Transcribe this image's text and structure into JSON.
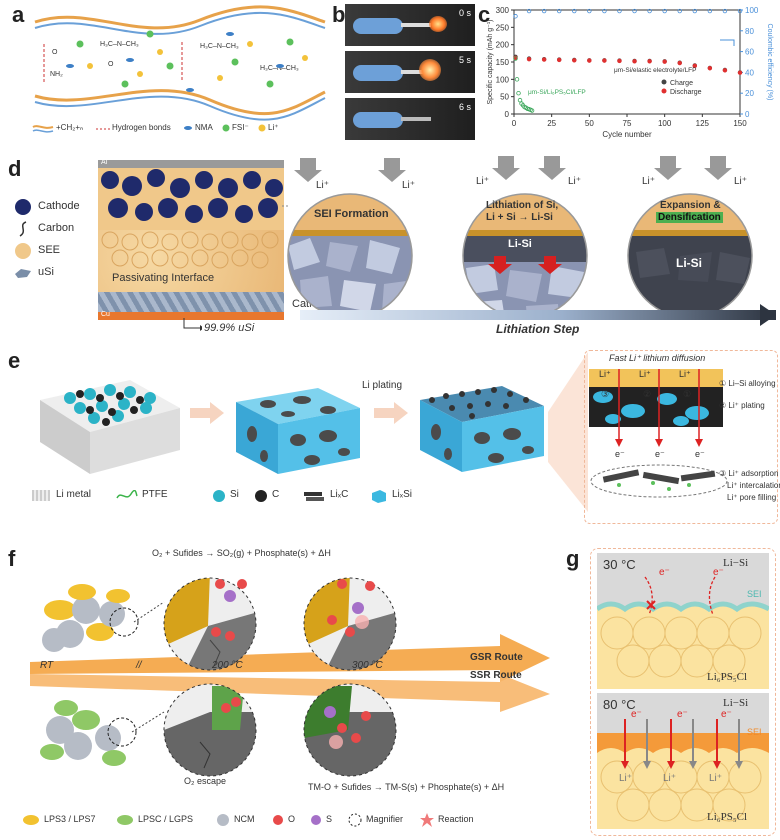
{
  "panels": {
    "a": {
      "letter": "a",
      "legend": {
        "polymer": "+CH₂+ₙ",
        "hbond": "Hydrogen bonds",
        "nma": "NMA",
        "fsi": "FSI⁻",
        "li": "Li⁺"
      }
    },
    "b": {
      "letter": "b",
      "times": [
        "0 s",
        "5 s",
        "6 s"
      ]
    },
    "c": {
      "letter": "c"
    },
    "d": {
      "letter": "d",
      "legend": [
        "Cathode",
        "Carbon",
        "SEE",
        "uSi"
      ],
      "cell_labels": {
        "top": "Al",
        "bottom": "Cu",
        "interface": "Passivating Interface",
        "cathode": "Cathode",
        "usi": "99.9% uSi"
      },
      "li_plus": "Li⁺",
      "circle1": "SEI Formation",
      "circle2_l1": "Lithiation of Si,",
      "circle2_l2": "Li + Si → Li-Si",
      "circle2_alloy": "Li-Si",
      "circle3_l1": "Expansion &",
      "circle3_l2": "Densification",
      "circle3_alloy": "Li-Si",
      "step": "Lithiation Step"
    },
    "e": {
      "letter": "e",
      "plating": "Li plating",
      "title": "Fast Li⁺ lithium diffusion",
      "li_plus": "Li⁺",
      "electron": "e⁻",
      "steps": [
        "① Li–Si alloying",
        "② Li⁺ plating",
        "③ Li⁺ adsorption",
        "Li⁺ intercalation",
        "Li⁺ pore filling"
      ],
      "step_nums": [
        "③",
        "②",
        "①"
      ],
      "legend": [
        "Li metal",
        "PTFE",
        "Si",
        "C",
        "LiₓC",
        "LiₓSi"
      ]
    },
    "f": {
      "letter": "f",
      "eq_top": "O₂ + Sufides → SO₂(g) + Phosphate(s) + ΔH",
      "eq_bottom": "TM-O + Sufides → TM-S(s) + Phosphate(s) + ΔH",
      "rt": "RT",
      "t200": "200 °C",
      "t300": "300 °C",
      "gsr": "GSR Route",
      "ssr": "SSR Route",
      "o2_escape": "O₂ escape",
      "legend": [
        "LPS3 / LPS7",
        "LPSC / LGPS",
        "NCM",
        "O",
        "S",
        "Magnifier",
        "Reaction"
      ]
    },
    "g": {
      "letter": "g",
      "top_temp": "30 °C",
      "top_alloy": "Li−Si",
      "top_sei": "SEI",
      "top_sse": "Li₆PS₅Cl",
      "bot_temp": "80 °C",
      "bot_alloy": "Li−Si",
      "bot_sei": "SEI",
      "bot_sse": "Li₆PS₅Cl",
      "electron": "e⁻",
      "li_plus": "Li⁺"
    }
  },
  "chart_data": {
    "type": "scatter",
    "xlabel": "Cycle number",
    "ylabel": "Specific capacity (mAh g⁻¹)",
    "y2label": "Coulombic efficiency (%)",
    "xlim": [
      0,
      150
    ],
    "ylim": [
      0,
      300
    ],
    "y2lim": [
      0,
      100
    ],
    "xticks": [
      0,
      25,
      50,
      75,
      100,
      125,
      150
    ],
    "yticks": [
      0,
      50,
      100,
      150,
      200,
      250,
      300
    ],
    "y2ticks": [
      0,
      20,
      40,
      60,
      80,
      100
    ],
    "annotations": [
      "μm-Si/elastic electrolyte/LFP",
      "μm-Si/Li₆PS₅Cl/LFP"
    ],
    "series": [
      {
        "name": "Charge",
        "color": "#444444",
        "x": [
          1,
          10,
          20,
          30,
          40,
          50,
          60,
          70,
          80,
          90,
          100,
          110,
          120,
          130,
          140,
          150
        ],
        "y": [
          165,
          160,
          158,
          157,
          156,
          155,
          155,
          154,
          153,
          153,
          152,
          148,
          140,
          133,
          127,
          120
        ]
      },
      {
        "name": "Discharge",
        "color": "#e03030",
        "x": [
          1,
          10,
          20,
          30,
          40,
          50,
          60,
          70,
          80,
          90,
          100,
          110,
          120,
          130,
          140,
          150
        ],
        "y": [
          162,
          158,
          157,
          156,
          155,
          154,
          154,
          153,
          152,
          152,
          151,
          147,
          139,
          132,
          126,
          119
        ]
      },
      {
        "name": "",
        "color": "#4a90d9",
        "axis": "y2",
        "x": [
          1,
          10,
          20,
          30,
          40,
          50,
          60,
          70,
          80,
          90,
          100,
          110,
          120,
          130,
          140,
          150
        ],
        "y": [
          94,
          99,
          99,
          99,
          99,
          99,
          99,
          99,
          99,
          99,
          99,
          99,
          99,
          99,
          99,
          99
        ]
      },
      {
        "name": "",
        "color": "#3aa65a",
        "x": [
          1,
          2,
          3,
          4,
          5,
          6,
          7,
          8,
          9,
          10,
          11,
          12
        ],
        "y": [
          160,
          100,
          60,
          40,
          30,
          25,
          20,
          18,
          15,
          14,
          12,
          10
        ]
      }
    ]
  }
}
